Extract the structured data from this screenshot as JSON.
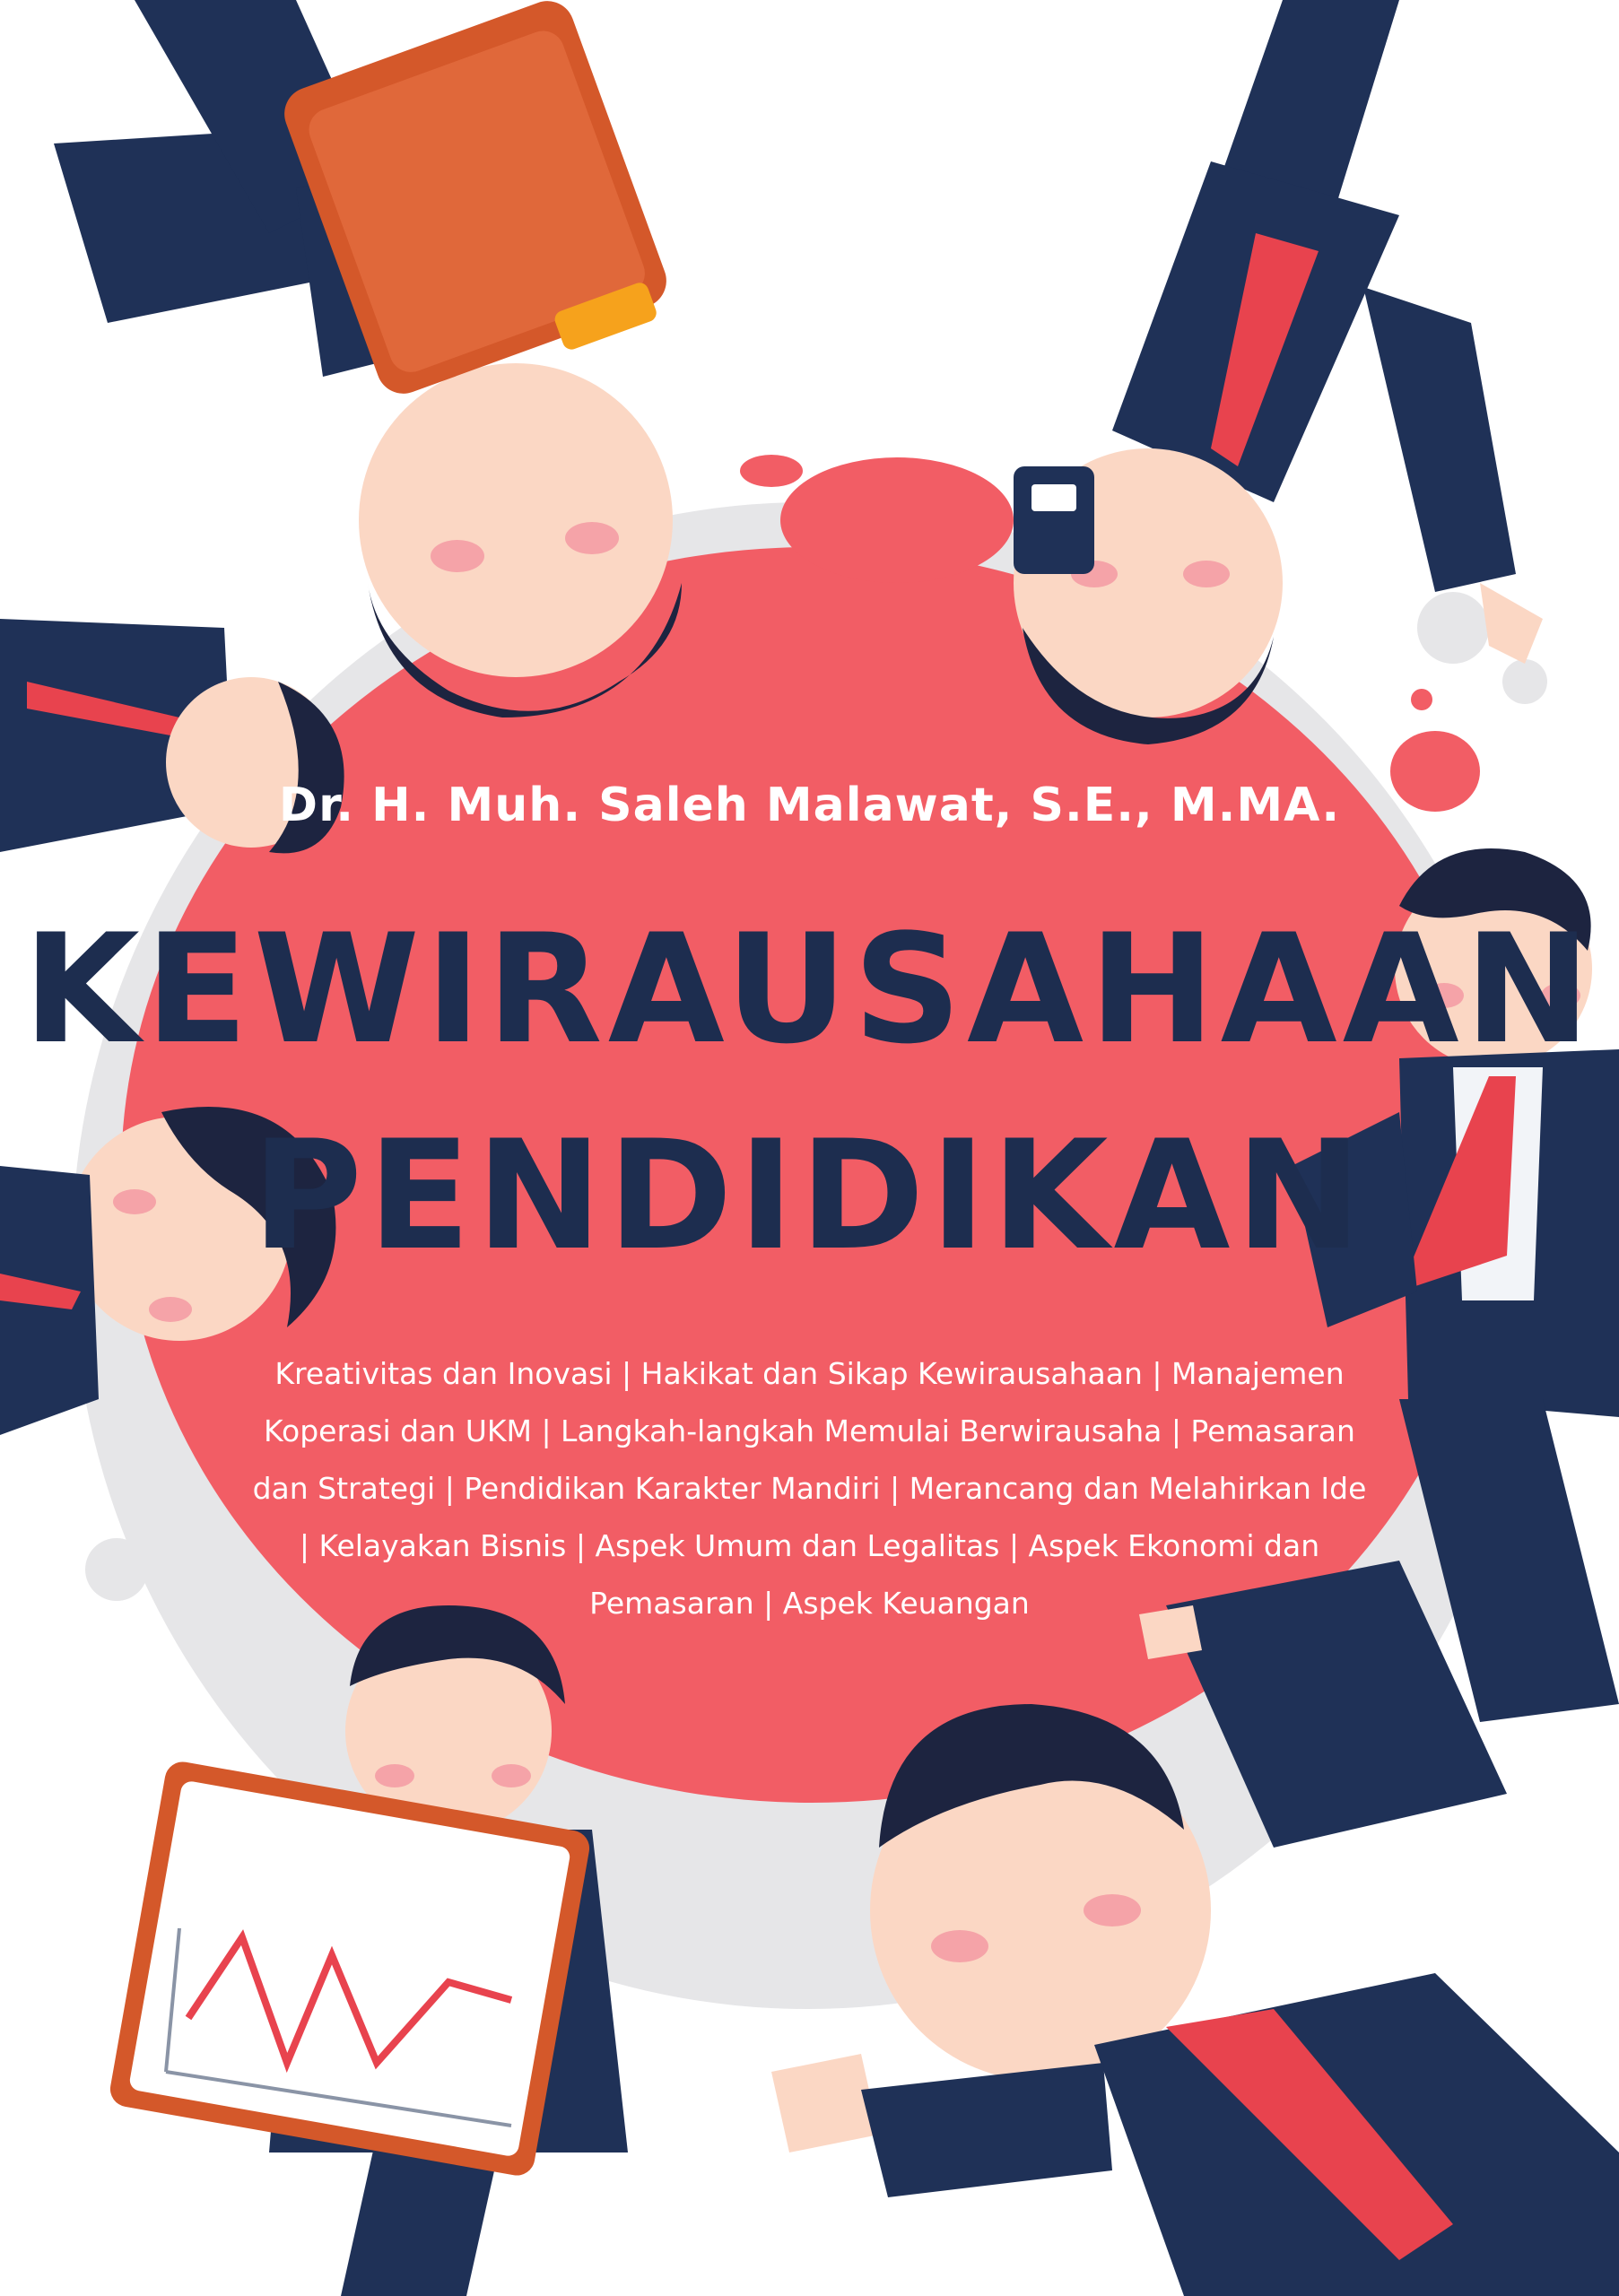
{
  "cover": {
    "author": "Dr. H. Muh. Saleh Malawat, S.E., M.MA.",
    "title_line1": "KEWIRAUSAHAAN",
    "title_line2": "PENDIDIKAN",
    "topics": "Kreativitas dan Inovasi | Hakikat dan Sikap Kewirausahaan | Manajemen Koperasi dan UKM | Langkah-langkah Memulai Berwirausaha | Pemasaran dan Strategi | Pendidikan Karakter Mandiri | Merancang dan Melahirkan Ide | Kelayakan Bisnis | Aspek Umum dan Legalitas | Aspek Ekonomi dan Pemasaran | Aspek Keuangan"
  },
  "colors": {
    "background": "#ffffff",
    "splash_red": "#f25d65",
    "splash_grey": "#e6e6e8",
    "suit_navy": "#1f3157",
    "title_navy": "#1d2d4f",
    "skin": "#fbd7c4",
    "tie_red": "#e8434e",
    "clipboard_orange": "#d4582a"
  },
  "illustration": {
    "icons": [
      "businessman-illustration",
      "clipboard-icon",
      "chart-board-icon",
      "id-badge-icon"
    ]
  }
}
